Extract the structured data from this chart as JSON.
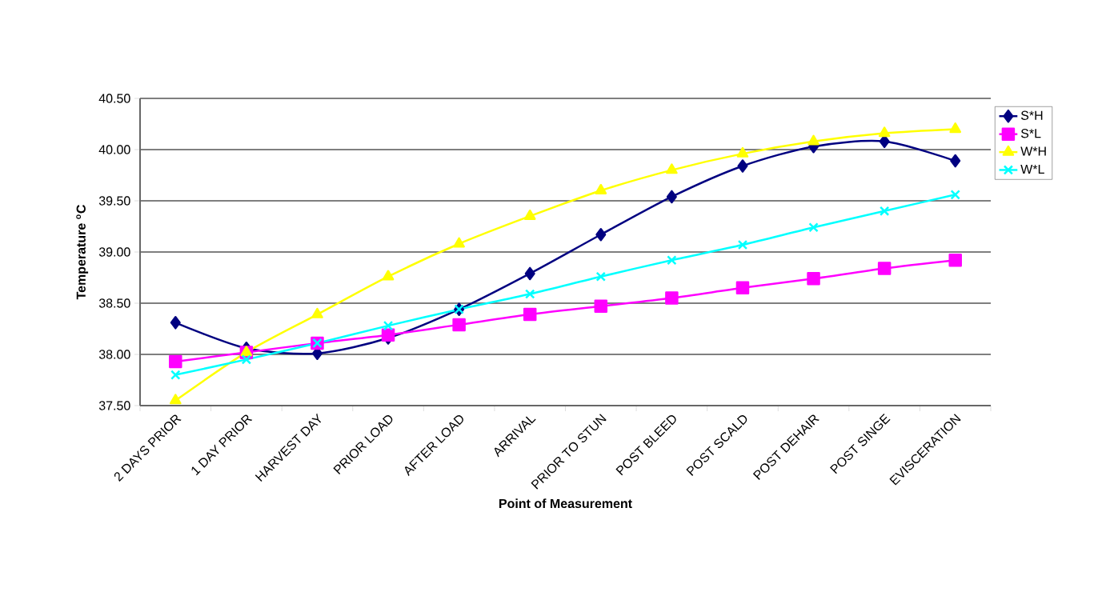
{
  "chart_data": {
    "type": "line",
    "xlabel": "Point of Measurement",
    "ylabel": "Temperature $^{o}$C",
    "categories": [
      "2 DAYS PRIOR",
      "1 DAY PRIOR",
      "HARVEST DAY",
      "PRIOR LOAD",
      "AFTER LOAD",
      "ARRIVAL",
      "PRIOR TO STUN",
      "POST BLEED",
      "POST SCALD",
      "POST DEHAIR",
      "POST SINGE",
      "EVISCERATION"
    ],
    "series": [
      {
        "name": "S*H",
        "color": "#000080",
        "marker": "diamond",
        "values": [
          38.31,
          38.06,
          38.01,
          38.16,
          38.44,
          38.79,
          39.17,
          39.54,
          39.84,
          40.03,
          40.08,
          39.89
        ]
      },
      {
        "name": "S*L",
        "color": "#ff00ff",
        "marker": "square",
        "values": [
          37.93,
          38.02,
          38.11,
          38.19,
          38.29,
          38.39,
          38.47,
          38.55,
          38.65,
          38.74,
          38.84,
          38.92
        ]
      },
      {
        "name": "W*H",
        "color": "#ffff00",
        "marker": "triangle",
        "values": [
          37.55,
          38.02,
          38.39,
          38.76,
          39.08,
          39.35,
          39.6,
          39.8,
          39.96,
          40.08,
          40.16,
          40.2
        ]
      },
      {
        "name": "W*L",
        "color": "#00ffff",
        "marker": "cross",
        "values": [
          37.8,
          37.95,
          38.11,
          38.28,
          38.44,
          38.59,
          38.76,
          38.92,
          39.07,
          39.24,
          39.4,
          39.56
        ]
      }
    ],
    "ylim": [
      37.5,
      40.5
    ],
    "yticks": [
      {
        "value": 37.5,
        "label": "37.50"
      },
      {
        "value": 38,
        "label": "38.00"
      },
      {
        "value": 38.5,
        "label": "38.50"
      },
      {
        "value": 39,
        "label": "39.00"
      },
      {
        "value": 39.5,
        "label": "39.50"
      },
      {
        "value": 40,
        "label": "40.00"
      },
      {
        "value": 40.5,
        "label": "40.50"
      }
    ],
    "grid": "y",
    "legend": "right"
  }
}
